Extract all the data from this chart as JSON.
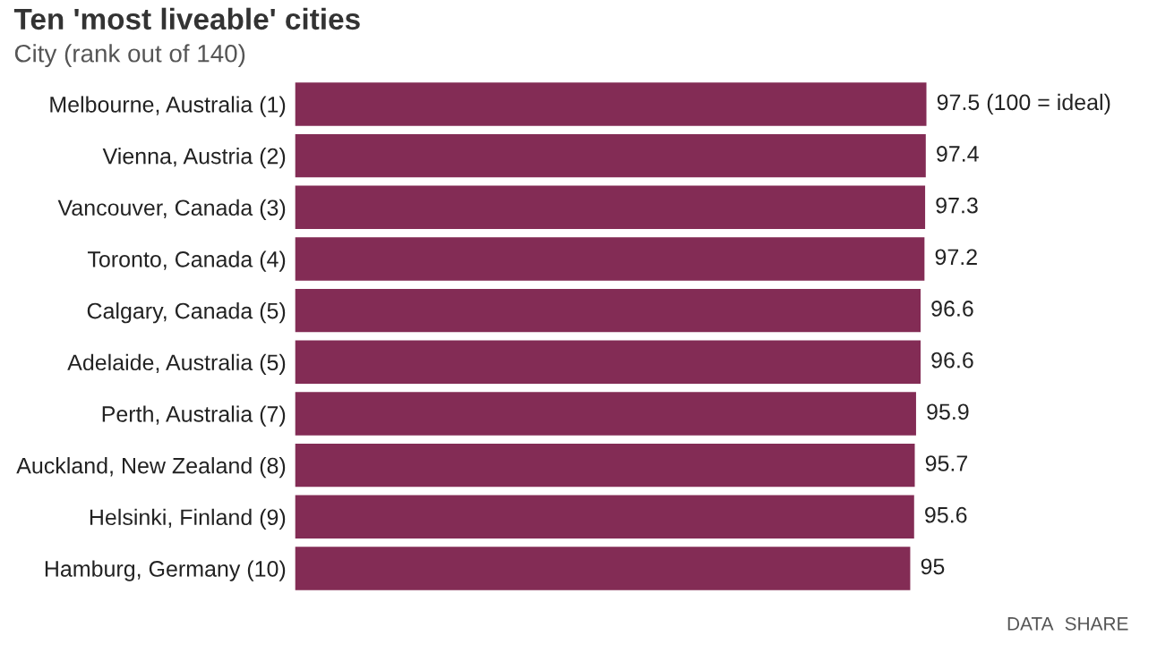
{
  "chart_data": {
    "type": "bar",
    "orientation": "horizontal",
    "title": "Ten 'most liveable' cities",
    "subtitle": "City (rank out of 140)",
    "categories": [
      "Melbourne, Australia (1)",
      "Vienna, Austria (2)",
      "Vancouver, Canada (3)",
      "Toronto, Canada (4)",
      "Calgary, Canada (5)",
      "Adelaide, Australia (5)",
      "Perth, Australia (7)",
      "Auckland, New Zealand (8)",
      "Helsinki, Finland (9)",
      "Hamburg, Germany (10)"
    ],
    "values": [
      97.5,
      97.4,
      97.3,
      97.2,
      96.6,
      96.6,
      95.9,
      95.7,
      95.6,
      95
    ],
    "value_labels": [
      "97.5 (100 = ideal)",
      "97.4",
      "97.3",
      "97.2",
      "96.6",
      "96.6",
      "95.9",
      "95.7",
      "95.6",
      "95"
    ],
    "color": "#832c55",
    "tick_labels": "y",
    "grid": false,
    "annotations": [
      "DATA",
      "SHARE"
    ]
  }
}
